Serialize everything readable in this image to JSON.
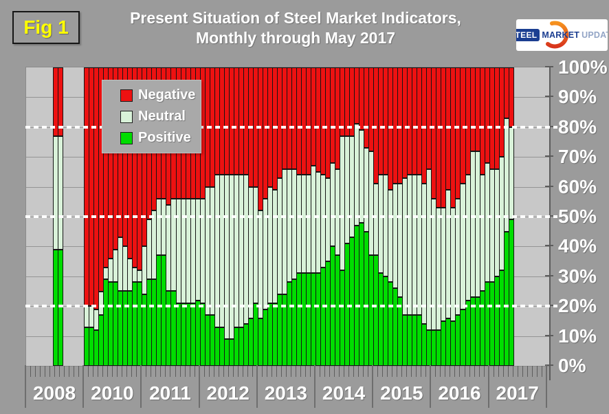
{
  "figure_label": "Fig 1",
  "title": {
    "line1": "Present Situation of Steel Market Indicators,",
    "line2": "Monthly through May 2017"
  },
  "logo": {
    "word1": "STEEL",
    "word2": "MARKET",
    "word3": "UPDATE",
    "navy": "#1b3e91",
    "light_blue": "#93a5c6",
    "orange": "#ee6a1e"
  },
  "legend": {
    "items": [
      {
        "label": "Negative",
        "color": "#ed1111"
      },
      {
        "label": "Neutral",
        "color": "#d9f2d9"
      },
      {
        "label": "Positive",
        "color": "#00dd00"
      }
    ]
  },
  "y_axis": {
    "tick_labels": [
      "100%",
      "90%",
      "80%",
      "70%",
      "60%",
      "50%",
      "40%",
      "30%",
      "20%",
      "10%",
      "0%"
    ]
  },
  "x_axis": {
    "year_labels": [
      "2008",
      "2010",
      "2011",
      "2012",
      "2013",
      "2014",
      "2015",
      "2016",
      "2017"
    ]
  },
  "chart_data": {
    "type": "bar",
    "subtype": "100-percent-stacked-monthly-columns",
    "title": "Present Situation of Steel Market Indicators, Monthly through May 2017",
    "ylim": [
      0,
      100
    ],
    "yticks": [
      0,
      10,
      20,
      30,
      40,
      50,
      60,
      70,
      80,
      90,
      100
    ],
    "guide_lines_percent": [
      20,
      50,
      80
    ],
    "grid": true,
    "legend_position": "upper-left-inside",
    "series_names": [
      "Positive",
      "Neutral",
      "Negative"
    ],
    "colors": {
      "negative": "#ed1111",
      "neutral": "#d9f2d9",
      "positive": "#00dd00"
    },
    "value_encoding": "p = Positive %, n = Neutral %, Negative = 100 - p - n",
    "years": [
      {
        "year": "2008",
        "start_slot": 5.5,
        "bars": [
          {
            "p": 39,
            "n": 38
          },
          {
            "p": 39,
            "n": 38
          }
        ]
      },
      {
        "year": "2010",
        "start_slot": 0,
        "bars": [
          {
            "p": 13,
            "n": 7
          },
          {
            "p": 13,
            "n": 7
          },
          {
            "p": 12,
            "n": 7
          },
          {
            "p": 17,
            "n": 8
          },
          {
            "p": 29,
            "n": 4
          },
          {
            "p": 28,
            "n": 8
          },
          {
            "p": 28,
            "n": 11
          },
          {
            "p": 25,
            "n": 18
          },
          {
            "p": 25,
            "n": 15
          },
          {
            "p": 25,
            "n": 11
          },
          {
            "p": 28,
            "n": 5
          },
          {
            "p": 28,
            "n": 4
          }
        ]
      },
      {
        "year": "2011",
        "start_slot": 0,
        "bars": [
          {
            "p": 24,
            "n": 16
          },
          {
            "p": 29,
            "n": 20
          },
          {
            "p": 29,
            "n": 23
          },
          {
            "p": 37,
            "n": 19
          },
          {
            "p": 37,
            "n": 19
          },
          {
            "p": 25,
            "n": 29
          },
          {
            "p": 25,
            "n": 31
          },
          {
            "p": 21,
            "n": 35
          },
          {
            "p": 21,
            "n": 35
          },
          {
            "p": 21,
            "n": 35
          },
          {
            "p": 21,
            "n": 35
          },
          {
            "p": 22,
            "n": 34
          }
        ]
      },
      {
        "year": "2012",
        "start_slot": 0,
        "bars": [
          {
            "p": 21,
            "n": 35
          },
          {
            "p": 17,
            "n": 43
          },
          {
            "p": 17,
            "n": 43
          },
          {
            "p": 13,
            "n": 51
          },
          {
            "p": 13,
            "n": 51
          },
          {
            "p": 9,
            "n": 55
          },
          {
            "p": 9,
            "n": 55
          },
          {
            "p": 13,
            "n": 51
          },
          {
            "p": 13,
            "n": 51
          },
          {
            "p": 14,
            "n": 50
          },
          {
            "p": 16,
            "n": 44
          },
          {
            "p": 21,
            "n": 39
          }
        ]
      },
      {
        "year": "2013",
        "start_slot": 0,
        "bars": [
          {
            "p": 16,
            "n": 36
          },
          {
            "p": 19,
            "n": 37
          },
          {
            "p": 21,
            "n": 39
          },
          {
            "p": 21,
            "n": 38
          },
          {
            "p": 24,
            "n": 39
          },
          {
            "p": 24,
            "n": 42
          },
          {
            "p": 28,
            "n": 38
          },
          {
            "p": 29,
            "n": 37
          },
          {
            "p": 31,
            "n": 33
          },
          {
            "p": 31,
            "n": 33
          },
          {
            "p": 31,
            "n": 33
          },
          {
            "p": 31,
            "n": 36
          }
        ]
      },
      {
        "year": "2014",
        "start_slot": 0,
        "bars": [
          {
            "p": 31,
            "n": 34
          },
          {
            "p": 33,
            "n": 31
          },
          {
            "p": 35,
            "n": 28
          },
          {
            "p": 40,
            "n": 28
          },
          {
            "p": 37,
            "n": 29
          },
          {
            "p": 32,
            "n": 45
          },
          {
            "p": 41,
            "n": 36
          },
          {
            "p": 43,
            "n": 34
          },
          {
            "p": 47,
            "n": 34
          },
          {
            "p": 48,
            "n": 31
          },
          {
            "p": 45,
            "n": 28
          },
          {
            "p": 37,
            "n": 35
          }
        ]
      },
      {
        "year": "2015",
        "start_slot": 0,
        "bars": [
          {
            "p": 37,
            "n": 24
          },
          {
            "p": 31,
            "n": 33
          },
          {
            "p": 30,
            "n": 34
          },
          {
            "p": 28,
            "n": 31
          },
          {
            "p": 26,
            "n": 35
          },
          {
            "p": 23,
            "n": 38
          },
          {
            "p": 17,
            "n": 46
          },
          {
            "p": 17,
            "n": 47
          },
          {
            "p": 17,
            "n": 47
          },
          {
            "p": 17,
            "n": 47
          },
          {
            "p": 14,
            "n": 47
          },
          {
            "p": 12,
            "n": 54
          }
        ]
      },
      {
        "year": "2016",
        "start_slot": 0,
        "bars": [
          {
            "p": 12,
            "n": 44
          },
          {
            "p": 12,
            "n": 41
          },
          {
            "p": 15,
            "n": 38
          },
          {
            "p": 16,
            "n": 43
          },
          {
            "p": 15,
            "n": 38
          },
          {
            "p": 17,
            "n": 39
          },
          {
            "p": 19,
            "n": 42
          },
          {
            "p": 22,
            "n": 42
          },
          {
            "p": 23,
            "n": 49
          },
          {
            "p": 23,
            "n": 49
          },
          {
            "p": 25,
            "n": 39
          },
          {
            "p": 28,
            "n": 40
          }
        ]
      },
      {
        "year": "2017",
        "start_slot": 0,
        "bars": [
          {
            "p": 28,
            "n": 38
          },
          {
            "p": 30,
            "n": 36
          },
          {
            "p": 32,
            "n": 38
          },
          {
            "p": 45,
            "n": 38
          },
          {
            "p": 49,
            "n": 31
          }
        ]
      }
    ]
  }
}
